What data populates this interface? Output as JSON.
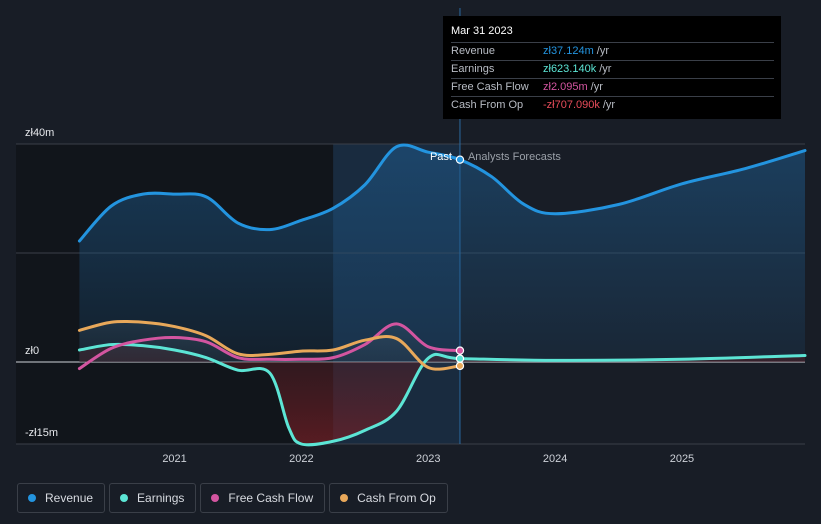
{
  "chart_data": {
    "type": "area",
    "y_tick_labels": [
      "zł40m",
      "zł0",
      "-zł15m"
    ],
    "y_ticks": [
      40,
      0,
      -15
    ],
    "ylim": [
      -15,
      40
    ],
    "x_tick_labels": [
      "2021",
      "2022",
      "2023",
      "2024",
      "2025"
    ],
    "x_ticks": [
      2021.0,
      2022.0,
      2023.0,
      2024.0,
      2025.0
    ],
    "xlim": [
      2019.75,
      2025.97
    ],
    "past_label": "Past",
    "forecast_label": "Analysts Forecasts",
    "divider_x": 2023.25,
    "highlight_range": [
      2022.25,
      2023.25
    ],
    "series": [
      {
        "name": "Revenue",
        "color": "#2394df",
        "x": [
          2020.25,
          2020.5,
          2020.75,
          2021.0,
          2021.25,
          2021.5,
          2021.75,
          2022.0,
          2022.25,
          2022.5,
          2022.75,
          2023.0,
          2023.25,
          2023.5,
          2023.75,
          2024.0,
          2024.5,
          2025.0,
          2025.5,
          2025.97
        ],
        "values": [
          22.2,
          28.6,
          30.8,
          30.8,
          30.3,
          25.5,
          24.3,
          26.0,
          28.2,
          32.5,
          39.5,
          38.5,
          37.124,
          34.0,
          29.0,
          27.2,
          28.9,
          32.7,
          35.5,
          38.8
        ]
      },
      {
        "name": "Earnings",
        "color": "#5ce5d5",
        "x": [
          2020.25,
          2020.5,
          2020.75,
          2021.0,
          2021.25,
          2021.5,
          2021.75,
          2021.9,
          2022.0,
          2022.25,
          2022.5,
          2022.75,
          2023.0,
          2023.25,
          2024.0,
          2025.0,
          2025.97
        ],
        "values": [
          2.2,
          3.2,
          3.0,
          2.2,
          0.8,
          -1.5,
          -2.0,
          -12.0,
          -15.0,
          -14.5,
          -12.5,
          -9.0,
          0.7,
          0.623,
          0.3,
          0.5,
          1.2
        ]
      },
      {
        "name": "Free Cash Flow",
        "color": "#d355a0",
        "x": [
          2020.25,
          2020.5,
          2020.75,
          2021.0,
          2021.25,
          2021.5,
          2021.75,
          2022.0,
          2022.25,
          2022.5,
          2022.75,
          2023.0,
          2023.25
        ],
        "values": [
          -1.2,
          2.5,
          4.0,
          4.5,
          3.7,
          0.8,
          0.5,
          0.5,
          0.8,
          3.2,
          7.0,
          2.8,
          2.095
        ]
      },
      {
        "name": "Cash From Op",
        "color": "#e8a85a",
        "x": [
          2020.25,
          2020.5,
          2020.75,
          2021.0,
          2021.25,
          2021.5,
          2021.75,
          2022.0,
          2022.25,
          2022.5,
          2022.75,
          2023.0,
          2023.25
        ],
        "values": [
          5.8,
          7.3,
          7.3,
          6.5,
          4.8,
          1.5,
          1.4,
          2.0,
          2.2,
          4.0,
          4.3,
          -1.0,
          -0.707
        ]
      }
    ]
  },
  "tooltip": {
    "date": "Mar 31 2023",
    "rows": [
      {
        "label": "Revenue",
        "value": "zł37.124m",
        "unit": "/yr",
        "color": "#2394df"
      },
      {
        "label": "Earnings",
        "value": "zł623.140k",
        "unit": "/yr",
        "color": "#5ce5d5"
      },
      {
        "label": "Free Cash Flow",
        "value": "zł2.095m",
        "unit": "/yr",
        "color": "#d355a0"
      },
      {
        "label": "Cash From Op",
        "value": "-zł707.090k",
        "unit": "/yr",
        "color": "#e84c5a"
      }
    ]
  },
  "legend": [
    {
      "label": "Revenue",
      "color": "#2394df"
    },
    {
      "label": "Earnings",
      "color": "#5ce5d5"
    },
    {
      "label": "Free Cash Flow",
      "color": "#d355a0"
    },
    {
      "label": "Cash From Op",
      "color": "#e8a85a"
    }
  ]
}
